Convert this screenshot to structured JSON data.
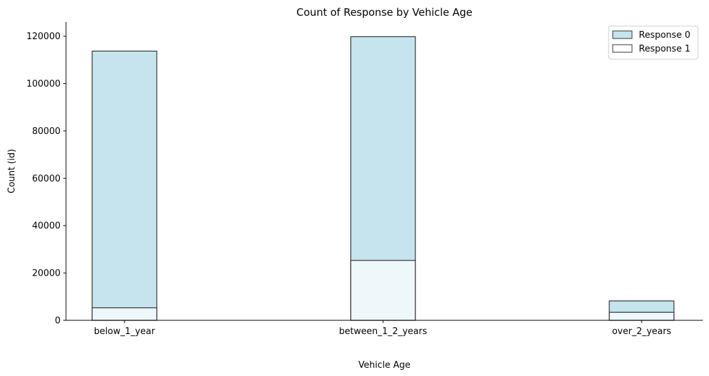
{
  "chart_data": {
    "type": "bar",
    "stacking": "overlay",
    "title": "Count of Response by Vehicle Age",
    "xlabel": "Vehicle Age",
    "ylabel": "Count (id)",
    "categories": [
      "below_1_year",
      "between_1_2_years",
      "over_2_years"
    ],
    "series": [
      {
        "name": "Response 0",
        "values": [
          113700,
          119800,
          8200
        ],
        "color": "#add8e6"
      },
      {
        "name": "Response 1",
        "values": [
          5300,
          25300,
          3400
        ],
        "color": "#ffffff"
      }
    ],
    "ylim": [
      0,
      126000
    ],
    "yticks": [
      0,
      20000,
      40000,
      60000,
      80000,
      100000,
      120000
    ],
    "legend": "top-right",
    "grid": false
  }
}
